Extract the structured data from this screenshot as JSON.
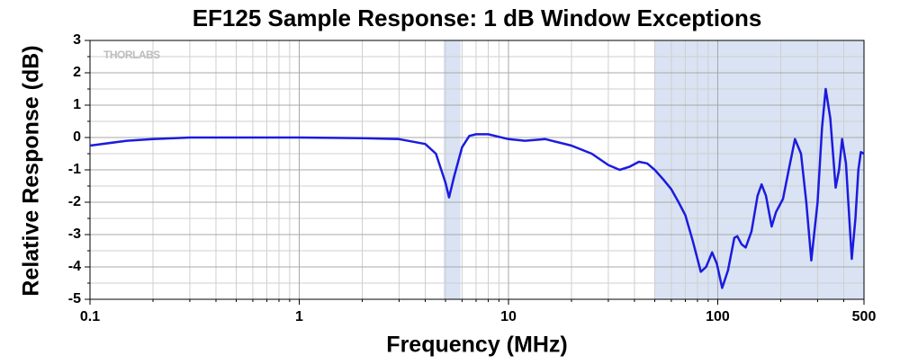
{
  "chart_data": {
    "type": "line",
    "title": "EF125 Sample Response: 1 dB Window Exceptions",
    "xlabel": "Frequency (MHz)",
    "ylabel": "Relative Response (dB)",
    "watermark": "THORLABS",
    "xscale": "log",
    "grid": true,
    "xlim": [
      0.1,
      500
    ],
    "ylim": [
      -5,
      3
    ],
    "xticks": [
      0.1,
      1,
      10,
      100,
      500
    ],
    "yticks": [
      -5,
      -4,
      -3,
      -2,
      -1,
      0,
      1,
      2,
      3
    ],
    "xminorticks": [
      0.2,
      0.3,
      0.4,
      0.5,
      0.6,
      0.7,
      0.8,
      0.9,
      2,
      3,
      4,
      5,
      6,
      7,
      8,
      9,
      20,
      30,
      40,
      50,
      60,
      70,
      80,
      90,
      200,
      300,
      400
    ],
    "yminorticks": [
      -4.5,
      -3.5,
      -2.5,
      -1.5,
      -0.5,
      0.5,
      1.5,
      2.5
    ],
    "shaded_ranges": [
      [
        4.9,
        5.9
      ],
      [
        50,
        500
      ]
    ],
    "shade_color": "#dae3f3",
    "x": [
      0.1,
      0.15,
      0.2,
      0.3,
      0.5,
      1,
      2,
      3,
      4,
      4.5,
      5,
      5.2,
      5.5,
      6,
      6.5,
      7,
      8,
      10,
      12,
      15,
      20,
      25,
      30,
      34,
      38,
      42,
      46,
      50,
      55,
      60,
      65,
      70,
      76,
      83,
      88,
      94,
      99,
      105,
      112,
      120,
      124,
      130,
      136,
      145,
      155,
      162,
      170,
      181,
      190,
      205,
      220,
      234,
      250,
      265,
      280,
      300,
      315,
      328,
      345,
      366,
      380,
      393,
      410,
      437,
      455,
      470,
      483,
      500
    ],
    "series": [
      {
        "name": "Relative Response",
        "color": "#1b1bdf",
        "values": [
          -0.25,
          -0.1,
          -0.05,
          0,
          0,
          0,
          -0.02,
          -0.05,
          -0.2,
          -0.5,
          -1.4,
          -1.85,
          -1.2,
          -0.3,
          0.05,
          0.1,
          0.1,
          -0.05,
          -0.1,
          -0.05,
          -0.25,
          -0.5,
          -0.85,
          -1.0,
          -0.9,
          -0.75,
          -0.8,
          -1.0,
          -1.3,
          -1.6,
          -2.0,
          -2.4,
          -3.2,
          -4.15,
          -4.0,
          -3.55,
          -3.9,
          -4.65,
          -4.1,
          -3.1,
          -3.05,
          -3.3,
          -3.4,
          -2.9,
          -1.8,
          -1.45,
          -1.8,
          -2.75,
          -2.3,
          -1.9,
          -0.9,
          -0.05,
          -0.5,
          -2.0,
          -3.8,
          -2.0,
          0.3,
          1.5,
          0.6,
          -1.55,
          -1.0,
          -0.05,
          -0.8,
          -3.75,
          -2.5,
          -1.0,
          -0.45,
          -0.5
        ]
      }
    ]
  }
}
